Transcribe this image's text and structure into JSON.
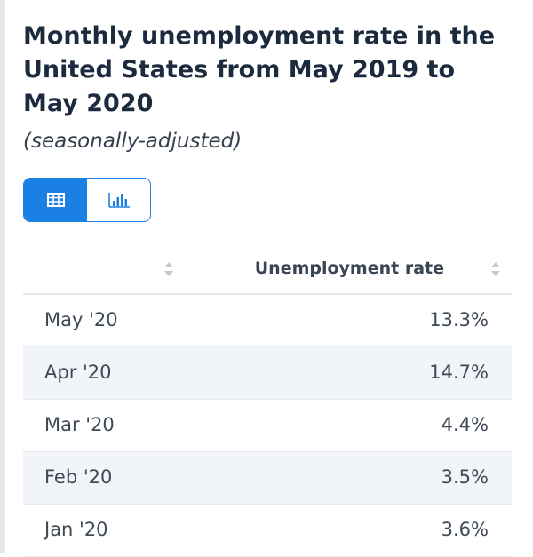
{
  "chart": {
    "title": "Monthly unemployment rate in the United States from May 2019 to May 2020",
    "subtitle": "(seasonally-adjusted)"
  },
  "view_toggle": {
    "active": "table",
    "options": [
      {
        "name": "table",
        "icon": "table-icon"
      },
      {
        "name": "chart",
        "icon": "bar-chart-icon"
      }
    ]
  },
  "colors": {
    "accent": "#1a80e6",
    "title": "#1c2a3e",
    "row_alt": "#f1f5f9"
  },
  "table": {
    "columns": [
      "",
      "Unemployment rate"
    ],
    "rows": [
      {
        "label": "May '20",
        "value": "13.3%"
      },
      {
        "label": "Apr '20",
        "value": "14.7%"
      },
      {
        "label": "Mar '20",
        "value": "4.4%"
      },
      {
        "label": "Feb '20",
        "value": "3.5%"
      },
      {
        "label": "Jan '20",
        "value": "3.6%"
      }
    ]
  },
  "chart_data": {
    "type": "table",
    "title": "Monthly unemployment rate in the United States from May 2019 to May 2020",
    "subtitle": "(seasonally-adjusted)",
    "categories": [
      "May '20",
      "Apr '20",
      "Mar '20",
      "Feb '20",
      "Jan '20"
    ],
    "series": [
      {
        "name": "Unemployment rate",
        "values": [
          13.3,
          14.7,
          4.4,
          3.5,
          3.6
        ]
      }
    ],
    "unit": "%"
  }
}
